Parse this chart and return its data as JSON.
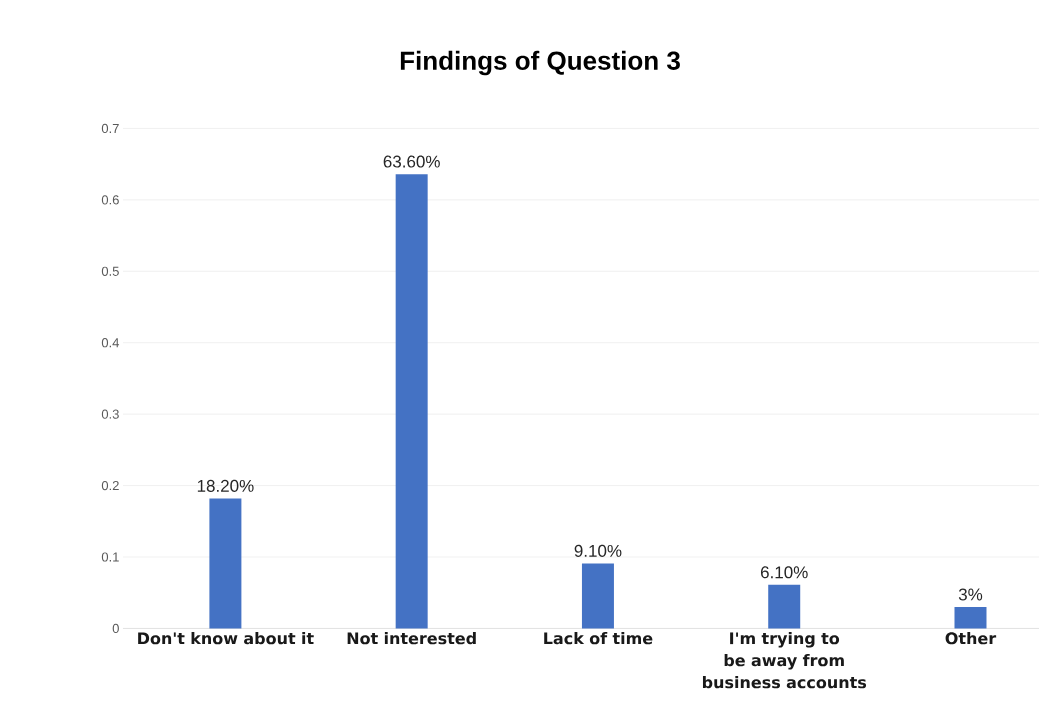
{
  "chart_data": {
    "type": "bar",
    "title": "Findings of Question 3",
    "categories": [
      "Don't know about it",
      "Not interested",
      "Lack of time",
      "I'm trying to be away from business accounts",
      "Other"
    ],
    "values": [
      0.182,
      0.636,
      0.091,
      0.061,
      0.03
    ],
    "value_labels": [
      "18.20%",
      "63.60%",
      "9.10%",
      "6.10%",
      "3%"
    ],
    "color": "#4472c4",
    "ylim": [
      0,
      0.7
    ],
    "yticks": [
      0,
      0.1,
      0.2,
      0.3,
      0.4,
      0.5,
      0.6,
      0.7
    ],
    "grid": "y"
  }
}
